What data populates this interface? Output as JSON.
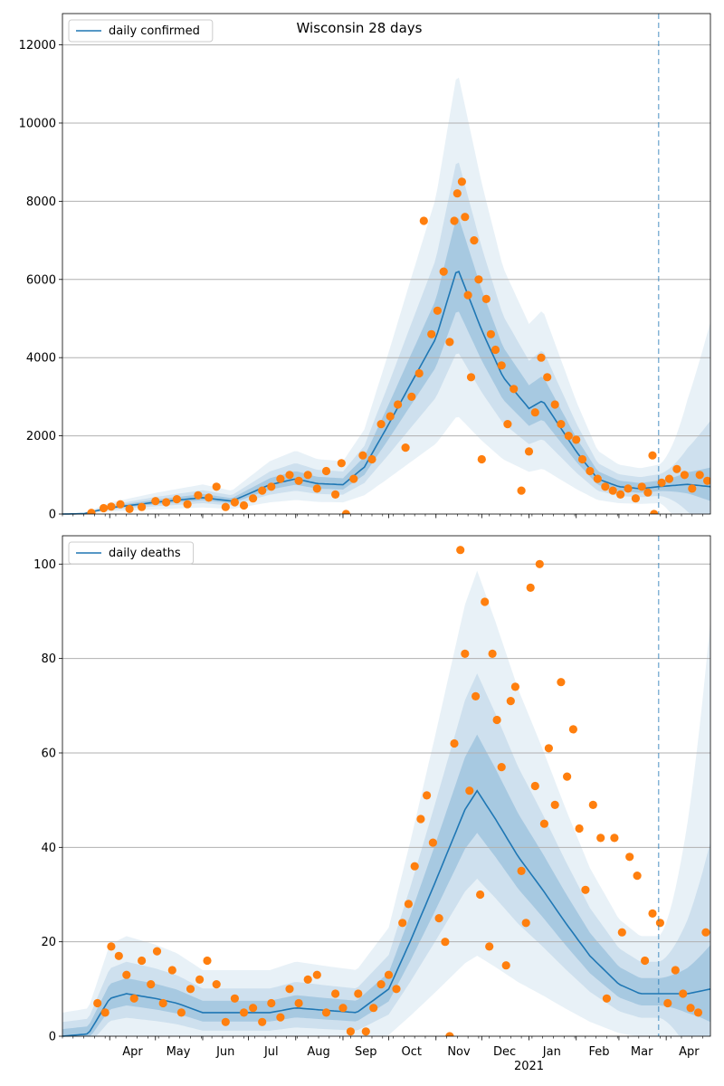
{
  "figure_title": "Wisconsin 28 days",
  "colors": {
    "line": "#1f77b4",
    "points": "#ff7f0e",
    "band": "#1f77b4",
    "grid": "#b0b0b0",
    "vline": "#1f77b4"
  },
  "chart_data": [
    {
      "type": "line",
      "panel": "confirmed",
      "title": "Wisconsin 28 days",
      "legend": "daily confirmed",
      "legend_position": "top-left",
      "grid": "horizontal",
      "xlim": [
        "2020-03-01",
        "2021-04-30"
      ],
      "ylim": [
        0,
        12800
      ],
      "yticks": [
        0,
        2000,
        4000,
        6000,
        8000,
        10000,
        12000
      ],
      "vline_date": "2021-03-27",
      "curve_knots": [
        [
          "2020-03-01",
          0
        ],
        [
          "2020-03-15",
          10
        ],
        [
          "2020-04-01",
          160
        ],
        [
          "2020-05-01",
          300
        ],
        [
          "2020-06-01",
          420
        ],
        [
          "2020-06-20",
          330
        ],
        [
          "2020-07-15",
          750
        ],
        [
          "2020-08-01",
          900
        ],
        [
          "2020-08-15",
          780
        ],
        [
          "2020-09-01",
          750
        ],
        [
          "2020-09-15",
          1200
        ],
        [
          "2020-10-01",
          2300
        ],
        [
          "2020-10-15",
          3300
        ],
        [
          "2020-11-01",
          4500
        ],
        [
          "2020-11-15",
          6300
        ],
        [
          "2020-12-01",
          4700
        ],
        [
          "2020-12-15",
          3500
        ],
        [
          "2021-01-01",
          2700
        ],
        [
          "2021-01-10",
          2900
        ],
        [
          "2021-02-01",
          1600
        ],
        [
          "2021-02-15",
          900
        ],
        [
          "2021-03-01",
          700
        ],
        [
          "2021-03-15",
          650
        ],
        [
          "2021-03-27",
          700
        ],
        [
          "2021-04-15",
          760
        ],
        [
          "2021-04-30",
          700
        ]
      ],
      "band_half_width": [
        [
          0.22,
          0.4
        ],
        [
          0.45,
          0.85
        ],
        [
          0.8,
          1.5
        ]
      ],
      "band_tail_growth": 6.5,
      "observed_points": [
        [
          "2020-03-20",
          30
        ],
        [
          "2020-03-28",
          150
        ],
        [
          "2020-04-02",
          190
        ],
        [
          "2020-04-08",
          250
        ],
        [
          "2020-04-14",
          130
        ],
        [
          "2020-04-22",
          180
        ],
        [
          "2020-05-01",
          330
        ],
        [
          "2020-05-08",
          300
        ],
        [
          "2020-05-15",
          380
        ],
        [
          "2020-05-22",
          250
        ],
        [
          "2020-05-29",
          480
        ],
        [
          "2020-06-05",
          420
        ],
        [
          "2020-06-10",
          700
        ],
        [
          "2020-06-16",
          180
        ],
        [
          "2020-06-22",
          300
        ],
        [
          "2020-06-28",
          220
        ],
        [
          "2020-07-04",
          400
        ],
        [
          "2020-07-10",
          600
        ],
        [
          "2020-07-16",
          700
        ],
        [
          "2020-07-22",
          900
        ],
        [
          "2020-07-28",
          1000
        ],
        [
          "2020-08-03",
          850
        ],
        [
          "2020-08-09",
          1000
        ],
        [
          "2020-08-15",
          650
        ],
        [
          "2020-08-21",
          1100
        ],
        [
          "2020-08-27",
          500
        ],
        [
          "2020-08-31",
          1300
        ],
        [
          "2020-09-03",
          0
        ],
        [
          "2020-09-08",
          900
        ],
        [
          "2020-09-14",
          1500
        ],
        [
          "2020-09-20",
          1400
        ],
        [
          "2020-09-26",
          2300
        ],
        [
          "2020-10-02",
          2500
        ],
        [
          "2020-10-07",
          2800
        ],
        [
          "2020-10-12",
          1700
        ],
        [
          "2020-10-16",
          3000
        ],
        [
          "2020-10-21",
          3600
        ],
        [
          "2020-10-24",
          7500
        ],
        [
          "2020-10-29",
          4600
        ],
        [
          "2020-11-02",
          5200
        ],
        [
          "2020-11-06",
          6200
        ],
        [
          "2020-11-10",
          4400
        ],
        [
          "2020-11-13",
          7500
        ],
        [
          "2020-11-15",
          8200
        ],
        [
          "2020-11-18",
          8500
        ],
        [
          "2020-11-20",
          7600
        ],
        [
          "2020-11-22",
          5600
        ],
        [
          "2020-11-24",
          3500
        ],
        [
          "2020-11-26",
          7000
        ],
        [
          "2020-11-29",
          6000
        ],
        [
          "2020-12-01",
          1400
        ],
        [
          "2020-12-04",
          5500
        ],
        [
          "2020-12-07",
          4600
        ],
        [
          "2020-12-10",
          4200
        ],
        [
          "2020-12-14",
          3800
        ],
        [
          "2020-12-18",
          2300
        ],
        [
          "2020-12-22",
          3200
        ],
        [
          "2020-12-27",
          600
        ],
        [
          "2021-01-01",
          1600
        ],
        [
          "2021-01-05",
          2600
        ],
        [
          "2021-01-09",
          4000
        ],
        [
          "2021-01-13",
          3500
        ],
        [
          "2021-01-18",
          2800
        ],
        [
          "2021-01-22",
          2300
        ],
        [
          "2021-01-27",
          2000
        ],
        [
          "2021-02-01",
          1900
        ],
        [
          "2021-02-05",
          1400
        ],
        [
          "2021-02-10",
          1100
        ],
        [
          "2021-02-15",
          900
        ],
        [
          "2021-02-20",
          700
        ],
        [
          "2021-02-25",
          600
        ],
        [
          "2021-03-02",
          500
        ],
        [
          "2021-03-07",
          650
        ],
        [
          "2021-03-12",
          400
        ],
        [
          "2021-03-16",
          700
        ],
        [
          "2021-03-20",
          550
        ],
        [
          "2021-03-23",
          1500
        ],
        [
          "2021-03-24",
          0
        ],
        [
          "2021-03-29",
          800
        ],
        [
          "2021-04-03",
          900
        ],
        [
          "2021-04-08",
          1150
        ],
        [
          "2021-04-13",
          1000
        ],
        [
          "2021-04-18",
          650
        ],
        [
          "2021-04-23",
          1000
        ],
        [
          "2021-04-28",
          850
        ]
      ]
    },
    {
      "type": "line",
      "panel": "deaths",
      "title": "",
      "legend": "daily deaths",
      "legend_position": "top-left",
      "grid": "horizontal",
      "xlim": [
        "2020-03-01",
        "2021-04-30"
      ],
      "ylim": [
        0,
        106
      ],
      "yticks": [
        0,
        20,
        40,
        60,
        80,
        100
      ],
      "vline_date": "2021-03-27",
      "xticks": [
        [
          "2020-04-01",
          "Apr"
        ],
        [
          "2020-05-01",
          "May"
        ],
        [
          "2020-06-01",
          "Jun"
        ],
        [
          "2020-07-01",
          "Jul"
        ],
        [
          "2020-08-01",
          "Aug"
        ],
        [
          "2020-09-01",
          "Sep"
        ],
        [
          "2020-10-01",
          "Oct"
        ],
        [
          "2020-11-01",
          "Nov"
        ],
        [
          "2020-12-01",
          "Dec"
        ],
        [
          "2021-01-01",
          "Jan"
        ],
        [
          "2021-02-01",
          "Feb"
        ],
        [
          "2021-03-01",
          "Mar"
        ],
        [
          "2021-04-01",
          "Apr"
        ]
      ],
      "year_label": [
        "2021-01-01",
        "2021"
      ],
      "curve_knots": [
        [
          "2020-03-01",
          0
        ],
        [
          "2020-03-18",
          0.5
        ],
        [
          "2020-04-01",
          8
        ],
        [
          "2020-04-12",
          9
        ],
        [
          "2020-05-01",
          8
        ],
        [
          "2020-05-15",
          7
        ],
        [
          "2020-06-01",
          5
        ],
        [
          "2020-06-20",
          5
        ],
        [
          "2020-07-15",
          5
        ],
        [
          "2020-08-01",
          6
        ],
        [
          "2020-08-20",
          5.5
        ],
        [
          "2020-09-10",
          5
        ],
        [
          "2020-10-01",
          10
        ],
        [
          "2020-10-15",
          20
        ],
        [
          "2020-11-01",
          33
        ],
        [
          "2020-11-20",
          48
        ],
        [
          "2020-11-28",
          52
        ],
        [
          "2020-12-10",
          46
        ],
        [
          "2020-12-25",
          38
        ],
        [
          "2021-01-10",
          31
        ],
        [
          "2021-01-25",
          24
        ],
        [
          "2021-02-10",
          17
        ],
        [
          "2021-03-01",
          11
        ],
        [
          "2021-03-15",
          9
        ],
        [
          "2021-04-15",
          9
        ],
        [
          "2021-04-30",
          10
        ]
      ],
      "band_half_width": [
        [
          0.2,
          1.5
        ],
        [
          0.42,
          3
        ],
        [
          0.8,
          5
        ]
      ],
      "band_tail_growth": 5.0,
      "observed_points": [
        [
          "2020-03-24",
          7
        ],
        [
          "2020-03-29",
          5
        ],
        [
          "2020-04-02",
          19
        ],
        [
          "2020-04-07",
          17
        ],
        [
          "2020-04-12",
          13
        ],
        [
          "2020-04-17",
          8
        ],
        [
          "2020-04-22",
          16
        ],
        [
          "2020-04-28",
          11
        ],
        [
          "2020-05-02",
          18
        ],
        [
          "2020-05-06",
          7
        ],
        [
          "2020-05-12",
          14
        ],
        [
          "2020-05-18",
          5
        ],
        [
          "2020-05-24",
          10
        ],
        [
          "2020-05-30",
          12
        ],
        [
          "2020-06-04",
          16
        ],
        [
          "2020-06-10",
          11
        ],
        [
          "2020-06-16",
          3
        ],
        [
          "2020-06-22",
          8
        ],
        [
          "2020-06-28",
          5
        ],
        [
          "2020-07-04",
          6
        ],
        [
          "2020-07-10",
          3
        ],
        [
          "2020-07-16",
          7
        ],
        [
          "2020-07-22",
          4
        ],
        [
          "2020-07-28",
          10
        ],
        [
          "2020-08-03",
          7
        ],
        [
          "2020-08-09",
          12
        ],
        [
          "2020-08-15",
          13
        ],
        [
          "2020-08-21",
          5
        ],
        [
          "2020-08-27",
          9
        ],
        [
          "2020-09-01",
          6
        ],
        [
          "2020-09-06",
          1
        ],
        [
          "2020-09-11",
          9
        ],
        [
          "2020-09-16",
          1
        ],
        [
          "2020-09-21",
          6
        ],
        [
          "2020-09-26",
          11
        ],
        [
          "2020-10-01",
          13
        ],
        [
          "2020-10-06",
          10
        ],
        [
          "2020-10-10",
          24
        ],
        [
          "2020-10-14",
          28
        ],
        [
          "2020-10-18",
          36
        ],
        [
          "2020-10-22",
          46
        ],
        [
          "2020-10-26",
          51
        ],
        [
          "2020-10-30",
          41
        ],
        [
          "2020-11-03",
          25
        ],
        [
          "2020-11-07",
          20
        ],
        [
          "2020-11-10",
          0
        ],
        [
          "2020-11-13",
          62
        ],
        [
          "2020-11-17",
          103
        ],
        [
          "2020-11-20",
          81
        ],
        [
          "2020-11-23",
          52
        ],
        [
          "2020-11-27",
          72
        ],
        [
          "2020-11-30",
          30
        ],
        [
          "2020-12-03",
          92
        ],
        [
          "2020-12-06",
          19
        ],
        [
          "2020-12-08",
          81
        ],
        [
          "2020-12-11",
          67
        ],
        [
          "2020-12-14",
          57
        ],
        [
          "2020-12-17",
          15
        ],
        [
          "2020-12-20",
          71
        ],
        [
          "2020-12-23",
          74
        ],
        [
          "2020-12-27",
          35
        ],
        [
          "2020-12-30",
          24
        ],
        [
          "2021-01-02",
          95
        ],
        [
          "2021-01-05",
          53
        ],
        [
          "2021-01-08",
          100
        ],
        [
          "2021-01-11",
          45
        ],
        [
          "2021-01-14",
          61
        ],
        [
          "2021-01-18",
          49
        ],
        [
          "2021-01-22",
          75
        ],
        [
          "2021-01-26",
          55
        ],
        [
          "2021-01-30",
          65
        ],
        [
          "2021-02-03",
          44
        ],
        [
          "2021-02-07",
          31
        ],
        [
          "2021-02-12",
          49
        ],
        [
          "2021-02-17",
          42
        ],
        [
          "2021-02-21",
          8
        ],
        [
          "2021-02-26",
          42
        ],
        [
          "2021-03-03",
          22
        ],
        [
          "2021-03-08",
          38
        ],
        [
          "2021-03-13",
          34
        ],
        [
          "2021-03-18",
          16
        ],
        [
          "2021-03-23",
          26
        ],
        [
          "2021-03-28",
          24
        ],
        [
          "2021-04-02",
          7
        ],
        [
          "2021-04-07",
          14
        ],
        [
          "2021-04-12",
          9
        ],
        [
          "2021-04-17",
          6
        ],
        [
          "2021-04-22",
          5
        ],
        [
          "2021-04-27",
          22
        ]
      ]
    }
  ]
}
